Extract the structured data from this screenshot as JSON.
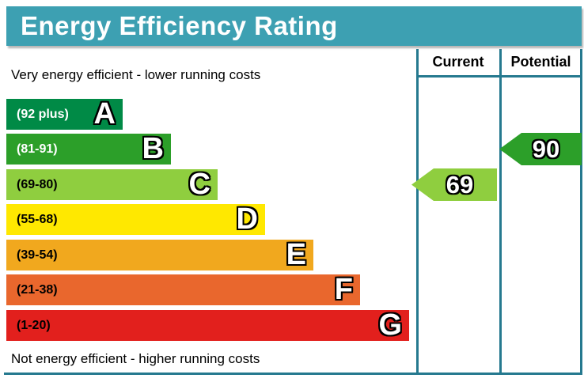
{
  "title": "Energy Efficiency Rating",
  "notes": {
    "top": "Very energy efficient - lower running costs",
    "bottom": "Not energy efficient - higher running costs"
  },
  "columns": {
    "current_label": "Current",
    "potential_label": "Potential"
  },
  "bands": [
    {
      "letter": "A",
      "range": "(92 plus)",
      "color": "#008a46",
      "label_color": "#ffffff"
    },
    {
      "letter": "B",
      "range": "(81-91)",
      "color": "#2c9f29",
      "label_color": "#ffffff"
    },
    {
      "letter": "C",
      "range": "(69-80)",
      "color": "#8fce3f",
      "label_color": "#000000"
    },
    {
      "letter": "D",
      "range": "(55-68)",
      "color": "#ffe800",
      "label_color": "#000000"
    },
    {
      "letter": "E",
      "range": "(39-54)",
      "color": "#f1a81e",
      "label_color": "#000000"
    },
    {
      "letter": "F",
      "range": "(21-38)",
      "color": "#e9672d",
      "label_color": "#000000"
    },
    {
      "letter": "G",
      "range": "(1-20)",
      "color": "#e2201d",
      "label_color": "#000000"
    }
  ],
  "ratings": {
    "current": {
      "value": "69",
      "band": "C"
    },
    "potential": {
      "value": "90",
      "band": "B"
    }
  },
  "colors": {
    "title_bg": "#3da0b2",
    "title_text": "#ffffff",
    "grid": "#25798f"
  },
  "chart_data": {
    "type": "bar",
    "title": "Energy Efficiency Rating",
    "categories": [
      "A",
      "B",
      "C",
      "D",
      "E",
      "F",
      "G"
    ],
    "band_ranges": [
      "92 plus",
      "81-91",
      "69-80",
      "55-68",
      "39-54",
      "21-38",
      "1-20"
    ],
    "band_colors": [
      "#008a46",
      "#2c9f29",
      "#8fce3f",
      "#ffe800",
      "#f1a81e",
      "#e9672d",
      "#e2201d"
    ],
    "bar_relative_lengths": [
      147,
      208,
      267,
      327,
      388,
      447,
      509
    ],
    "current": {
      "value": 69,
      "band": "C"
    },
    "potential": {
      "value": 90,
      "band": "B"
    },
    "legend_position": "top-right-columns",
    "grid": false
  }
}
